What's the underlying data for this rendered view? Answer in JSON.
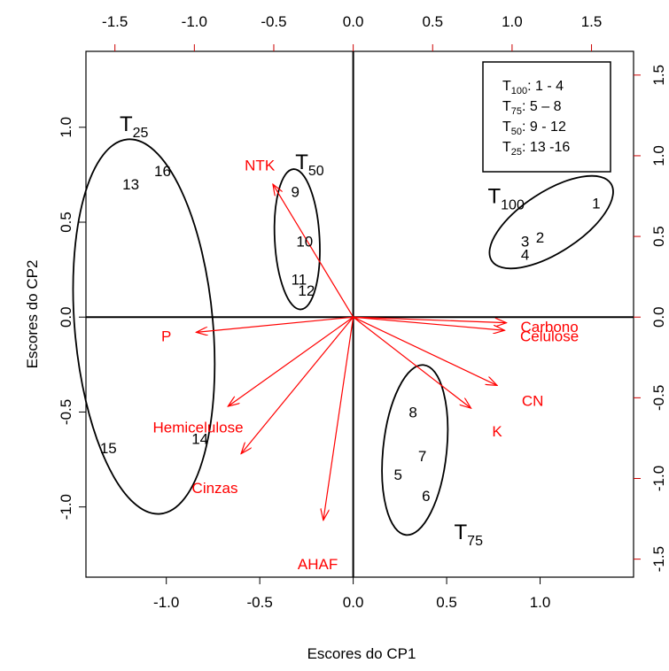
{
  "chart_data": {
    "type": "biplot",
    "xlabel": "Escores do CP1",
    "ylabel": "Escores do CP2",
    "xlim": [
      -1.43,
      1.5
    ],
    "ylim": [
      -1.37,
      1.4
    ],
    "bottom_ticks": [
      "-1.0",
      "-0.5",
      "0.0",
      "0.5",
      "1.0"
    ],
    "left_ticks": [
      "-1.0",
      "-0.5",
      "0.0",
      "0.5",
      "1.0"
    ],
    "top_ticks": [
      "-1.5",
      "-1.0",
      "-0.5",
      "0.0",
      "0.5",
      "1.0",
      "1.5"
    ],
    "right_ticks": [
      "-1.5",
      "-1.0",
      "-0.5",
      "0.0",
      "0.5",
      "1.0",
      "1.5"
    ],
    "loading_axis_scale": 0.85,
    "arrow_color": "#ff0000",
    "axis_color_secondary": "#cc0000",
    "scores": [
      {
        "label": "1",
        "x": 1.3,
        "y": 0.6
      },
      {
        "label": "2",
        "x": 1.0,
        "y": 0.42
      },
      {
        "label": "3",
        "x": 0.92,
        "y": 0.4
      },
      {
        "label": "4",
        "x": 0.92,
        "y": 0.33
      },
      {
        "label": "5",
        "x": 0.24,
        "y": -0.83
      },
      {
        "label": "6",
        "x": 0.39,
        "y": -0.94
      },
      {
        "label": "7",
        "x": 0.37,
        "y": -0.73
      },
      {
        "label": "8",
        "x": 0.32,
        "y": -0.5
      },
      {
        "label": "9",
        "x": -0.31,
        "y": 0.66
      },
      {
        "label": "10",
        "x": -0.26,
        "y": 0.4
      },
      {
        "label": "11",
        "x": -0.29,
        "y": 0.2
      },
      {
        "label": "12",
        "x": -0.25,
        "y": 0.14
      },
      {
        "label": "13",
        "x": -1.19,
        "y": 0.7
      },
      {
        "label": "14",
        "x": -0.82,
        "y": -0.64
      },
      {
        "label": "15",
        "x": -1.31,
        "y": -0.69
      },
      {
        "label": "16",
        "x": -1.02,
        "y": 0.77
      }
    ],
    "loadings": [
      {
        "label": "NTK",
        "x": -0.43,
        "y": 0.7,
        "lx": -0.5,
        "ly": 0.8
      },
      {
        "label": "P",
        "x": -0.84,
        "y": -0.08,
        "lx": -1.0,
        "ly": -0.1
      },
      {
        "label": "Hemicelulose",
        "x": -0.67,
        "y": -0.47,
        "lx": -0.83,
        "ly": -0.58
      },
      {
        "label": "Cinzas",
        "x": -0.6,
        "y": -0.72,
        "lx": -0.74,
        "ly": -0.9
      },
      {
        "label": "AHAF",
        "x": -0.16,
        "y": -1.07,
        "lx": -0.19,
        "ly": -1.3
      },
      {
        "label": "K",
        "x": 0.63,
        "y": -0.48,
        "lx": 0.77,
        "ly": -0.6
      },
      {
        "label": "CN",
        "x": 0.77,
        "y": -0.36,
        "lx": 0.96,
        "ly": -0.44
      },
      {
        "label": "Celulose",
        "x": 0.81,
        "y": -0.07,
        "lx": 1.05,
        "ly": -0.1
      },
      {
        "label": "Carbono",
        "x": 0.82,
        "y": -0.03,
        "lx": 1.05,
        "ly": -0.05
      }
    ],
    "groups": [
      {
        "label_main": "T",
        "label_sub": "25",
        "x": -1.25,
        "y": 0.98,
        "cx": -1.12,
        "cy": -0.05,
        "rx": 0.37,
        "ry": 0.99,
        "rot": 5
      },
      {
        "label_main": "T",
        "label_sub": "50",
        "x": -0.31,
        "y": 0.78,
        "cx": -0.3,
        "cy": 0.41,
        "rx": 0.12,
        "ry": 0.37,
        "rot": 3
      },
      {
        "label_main": "T",
        "label_sub": "100",
        "x": 0.72,
        "y": 0.6,
        "cx": 1.06,
        "cy": 0.5,
        "rx": 0.38,
        "ry": 0.16,
        "rot": 33
      },
      {
        "label_main": "T",
        "label_sub": "75",
        "x": 0.54,
        "y": -1.17,
        "cx": 0.33,
        "cy": -0.7,
        "rx": 0.17,
        "ry": 0.45,
        "rot": -6
      }
    ],
    "legend": {
      "placement": "top-right",
      "entries": [
        {
          "main": "T",
          "sub": "100",
          "text": ": 1 - 4"
        },
        {
          "main": "T",
          "sub": "75",
          "text": ": 5 – 8"
        },
        {
          "main": "T",
          "sub": "50",
          "text": ": 9 - 12"
        },
        {
          "main": "T",
          "sub": "25",
          "text": ": 13 -16"
        }
      ]
    }
  }
}
